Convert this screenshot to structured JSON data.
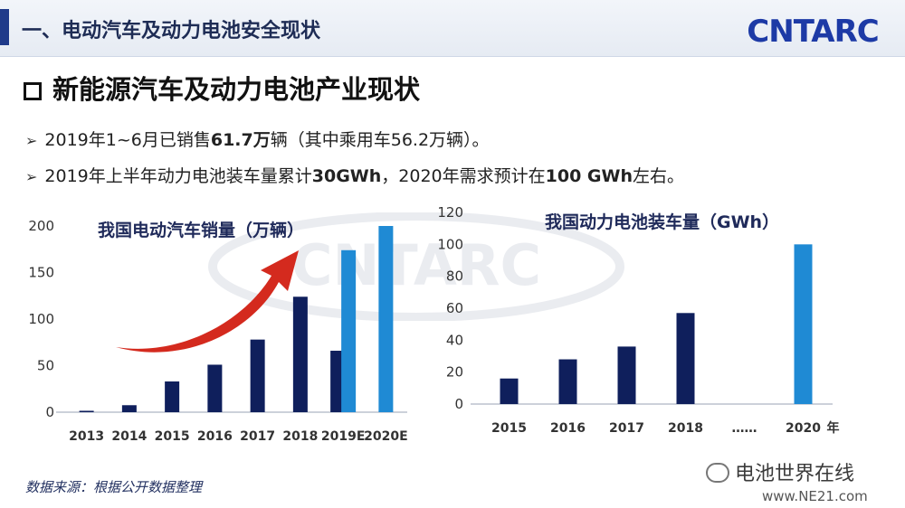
{
  "header": {
    "title": "一、电动汽车及动力电池安全现状",
    "logo_text": "CNTARC"
  },
  "section": {
    "title": "新能源汽车及动力电池产业现状"
  },
  "bullets": [
    {
      "pre": "2019年1~6月已销售",
      "bold": "61.7万",
      "post": "辆（其中乘用车56.2万辆）。"
    },
    {
      "pre": "2019年上半年动力电池装车量累计",
      "bold": "30GWh",
      "mid": "，2020年需求预计在",
      "bold2": "100 GWh",
      "post": "左右。"
    }
  ],
  "source": "数据来源：根据公开数据整理",
  "credit": {
    "text": "电池世界在线",
    "url": "www.NE21.com"
  },
  "colors": {
    "dark_bar": "#0f1f5c",
    "light_bar": "#1f8ad4",
    "arrow": "#d42a1e"
  },
  "chart_data": [
    {
      "type": "bar",
      "title": "我国电动汽车销量（万辆）",
      "categories": [
        "2013",
        "2014",
        "2015",
        "2016",
        "2017",
        "2018",
        "2019E",
        "2020E"
      ],
      "series": [
        {
          "values": [
            1.5,
            7.5,
            33,
            51,
            78,
            124,
            66,
            null
          ]
        },
        {
          "values": [
            null,
            null,
            null,
            null,
            null,
            null,
            174,
            200
          ]
        }
      ],
      "ylim": [
        0,
        200
      ],
      "yticks": [
        0,
        50,
        100,
        150,
        200
      ],
      "grid": false
    },
    {
      "type": "bar",
      "title": "我国动力电池装车量（GWh）",
      "categories": [
        "2015",
        "2016",
        "2017",
        "2018",
        "……",
        "2020"
      ],
      "x_suffix": "年",
      "series": [
        {
          "values": [
            16,
            28,
            36,
            57,
            null,
            null
          ]
        },
        {
          "values": [
            null,
            null,
            null,
            null,
            null,
            100
          ]
        }
      ],
      "ylim": [
        0,
        120
      ],
      "yticks": [
        0,
        20,
        40,
        60,
        80,
        100,
        120
      ],
      "grid": false
    }
  ]
}
